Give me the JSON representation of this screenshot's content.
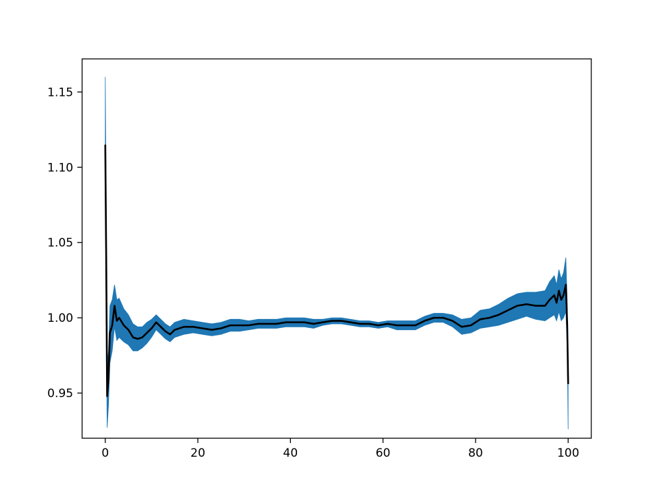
{
  "chart_data": {
    "type": "line",
    "title": "",
    "xlabel": "",
    "ylabel": "",
    "xlim": [
      -5,
      105
    ],
    "ylim": [
      0.92,
      1.172
    ],
    "xticks": [
      0,
      20,
      40,
      60,
      80,
      100
    ],
    "xtick_labels": [
      "0",
      "20",
      "40",
      "60",
      "80",
      "100"
    ],
    "yticks": [
      0.95,
      1.0,
      1.05,
      1.1,
      1.15
    ],
    "ytick_labels": [
      "0.95",
      "1.00",
      "1.05",
      "1.10",
      "1.15"
    ],
    "grid": false,
    "legend": "none",
    "series": [
      {
        "role": "mean",
        "color": "#000000",
        "x": [
          0,
          0.2,
          0.4,
          0.7,
          1,
          1.5,
          2,
          2.5,
          3,
          4,
          5,
          6,
          7,
          8,
          9,
          10,
          11,
          12,
          13,
          14,
          15,
          17,
          19,
          21,
          23,
          25,
          27,
          29,
          31,
          33,
          35,
          37,
          39,
          41,
          43,
          45,
          47,
          49,
          51,
          53,
          55,
          57,
          59,
          61,
          63,
          65,
          67,
          69,
          71,
          73,
          75,
          77,
          79,
          81,
          83,
          85,
          87,
          89,
          91,
          93,
          95,
          96,
          97,
          97.5,
          98,
          98.5,
          99,
          99.5,
          99.8,
          100
        ],
        "y": [
          1.115,
          1.04,
          0.948,
          0.96,
          0.99,
          0.995,
          1.008,
          0.998,
          1.0,
          0.995,
          0.992,
          0.987,
          0.986,
          0.987,
          0.99,
          0.993,
          0.997,
          0.994,
          0.991,
          0.989,
          0.992,
          0.994,
          0.994,
          0.993,
          0.992,
          0.993,
          0.995,
          0.995,
          0.995,
          0.996,
          0.996,
          0.996,
          0.997,
          0.997,
          0.997,
          0.996,
          0.997,
          0.998,
          0.998,
          0.997,
          0.996,
          0.996,
          0.995,
          0.996,
          0.995,
          0.995,
          0.995,
          0.998,
          1.0,
          1.0,
          0.998,
          0.994,
          0.995,
          0.999,
          1.0,
          1.002,
          1.005,
          1.008,
          1.009,
          1.008,
          1.008,
          1.012,
          1.015,
          1.01,
          1.018,
          1.012,
          1.015,
          1.022,
          0.995,
          0.956
        ]
      },
      {
        "role": "upper-band",
        "color": "#1f77b4",
        "x": [
          0,
          0.2,
          0.4,
          0.7,
          1,
          1.5,
          2,
          2.5,
          3,
          4,
          5,
          6,
          7,
          8,
          9,
          10,
          11,
          12,
          13,
          14,
          15,
          17,
          19,
          21,
          23,
          25,
          27,
          29,
          31,
          33,
          35,
          37,
          39,
          41,
          43,
          45,
          47,
          49,
          51,
          53,
          55,
          57,
          59,
          61,
          63,
          65,
          67,
          69,
          71,
          73,
          75,
          77,
          79,
          81,
          83,
          85,
          87,
          89,
          91,
          93,
          95,
          96,
          97,
          97.5,
          98,
          98.5,
          99,
          99.5,
          99.8,
          100
        ],
        "y": [
          1.16,
          1.08,
          0.968,
          0.978,
          1.008,
          1.012,
          1.022,
          1.012,
          1.013,
          1.006,
          1.002,
          0.996,
          0.994,
          0.994,
          0.997,
          0.999,
          1.002,
          0.999,
          0.996,
          0.994,
          0.997,
          0.999,
          0.998,
          0.997,
          0.996,
          0.997,
          0.999,
          0.999,
          0.998,
          0.999,
          0.999,
          0.999,
          1.0,
          1.0,
          1.0,
          0.999,
          0.999,
          1.0,
          1.0,
          0.999,
          0.998,
          0.998,
          0.997,
          0.998,
          0.998,
          0.998,
          0.998,
          1.001,
          1.003,
          1.003,
          1.002,
          0.999,
          1.0,
          1.005,
          1.006,
          1.009,
          1.013,
          1.016,
          1.017,
          1.017,
          1.018,
          1.024,
          1.028,
          1.022,
          1.032,
          1.026,
          1.03,
          1.04,
          1.01,
          0.97
        ]
      },
      {
        "role": "lower-band",
        "color": "#1f77b4",
        "x": [
          0,
          0.2,
          0.4,
          0.7,
          1,
          1.5,
          2,
          2.5,
          3,
          4,
          5,
          6,
          7,
          8,
          9,
          10,
          11,
          12,
          13,
          14,
          15,
          17,
          19,
          21,
          23,
          25,
          27,
          29,
          31,
          33,
          35,
          37,
          39,
          41,
          43,
          45,
          47,
          49,
          51,
          53,
          55,
          57,
          59,
          61,
          63,
          65,
          67,
          69,
          71,
          73,
          75,
          77,
          79,
          81,
          83,
          85,
          87,
          89,
          91,
          93,
          95,
          96,
          97,
          97.5,
          98,
          98.5,
          99,
          99.5,
          99.8,
          100
        ],
        "y": [
          1.08,
          1.0,
          0.927,
          0.942,
          0.97,
          0.978,
          0.994,
          0.985,
          0.987,
          0.984,
          0.982,
          0.978,
          0.978,
          0.98,
          0.983,
          0.987,
          0.992,
          0.989,
          0.986,
          0.984,
          0.987,
          0.989,
          0.99,
          0.989,
          0.988,
          0.989,
          0.991,
          0.991,
          0.992,
          0.993,
          0.993,
          0.993,
          0.994,
          0.994,
          0.994,
          0.993,
          0.995,
          0.996,
          0.996,
          0.995,
          0.994,
          0.994,
          0.993,
          0.994,
          0.992,
          0.992,
          0.992,
          0.995,
          0.997,
          0.997,
          0.994,
          0.989,
          0.99,
          0.993,
          0.994,
          0.995,
          0.997,
          0.999,
          1.001,
          0.999,
          0.998,
          1.0,
          1.002,
          0.998,
          1.004,
          0.998,
          1.0,
          1.004,
          0.98,
          0.926
        ]
      }
    ]
  }
}
